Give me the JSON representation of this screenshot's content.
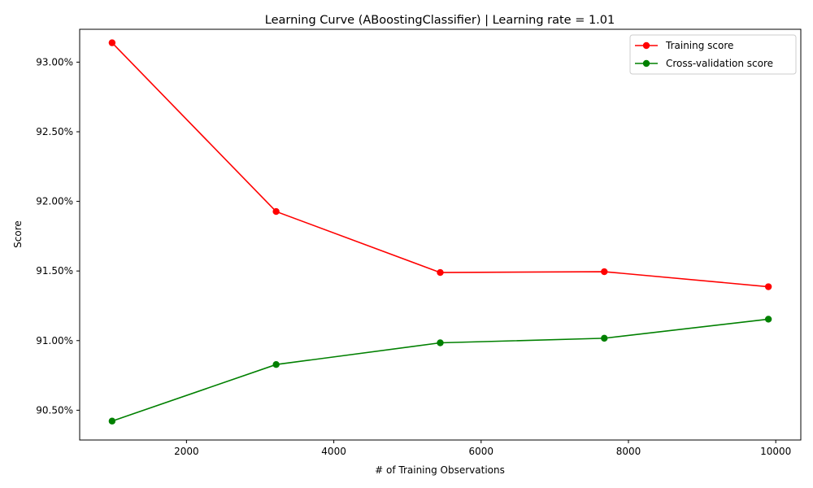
{
  "chart_data": {
    "type": "line",
    "title": "Learning Curve (ABoostingClassifier) | Learning rate = 1.01",
    "xlabel": "# of Training Observations",
    "ylabel": "Score",
    "x": [
      990,
      3217,
      5445,
      7672,
      9900
    ],
    "xlim": [
      550,
      10340
    ],
    "ylim": [
      0.90286,
      0.93236
    ],
    "x_ticks": [
      2000,
      4000,
      6000,
      8000,
      10000
    ],
    "x_tick_labels": [
      "2000",
      "4000",
      "6000",
      "8000",
      "10000"
    ],
    "y_ticks": [
      0.905,
      0.91,
      0.915,
      0.92,
      0.925,
      0.93
    ],
    "y_tick_labels": [
      "90.50%",
      "91.00%",
      "91.50%",
      "92.00%",
      "92.50%",
      "93.00%"
    ],
    "grid": false,
    "legend_position": "top-right",
    "series": [
      {
        "name": "Training score",
        "color": "#ff0000",
        "values": [
          0.93139,
          0.91927,
          0.91489,
          0.91495,
          0.91387
        ]
      },
      {
        "name": "Cross-validation score",
        "color": "#008000",
        "values": [
          0.90422,
          0.90828,
          0.90984,
          0.91017,
          0.91154
        ]
      }
    ]
  }
}
